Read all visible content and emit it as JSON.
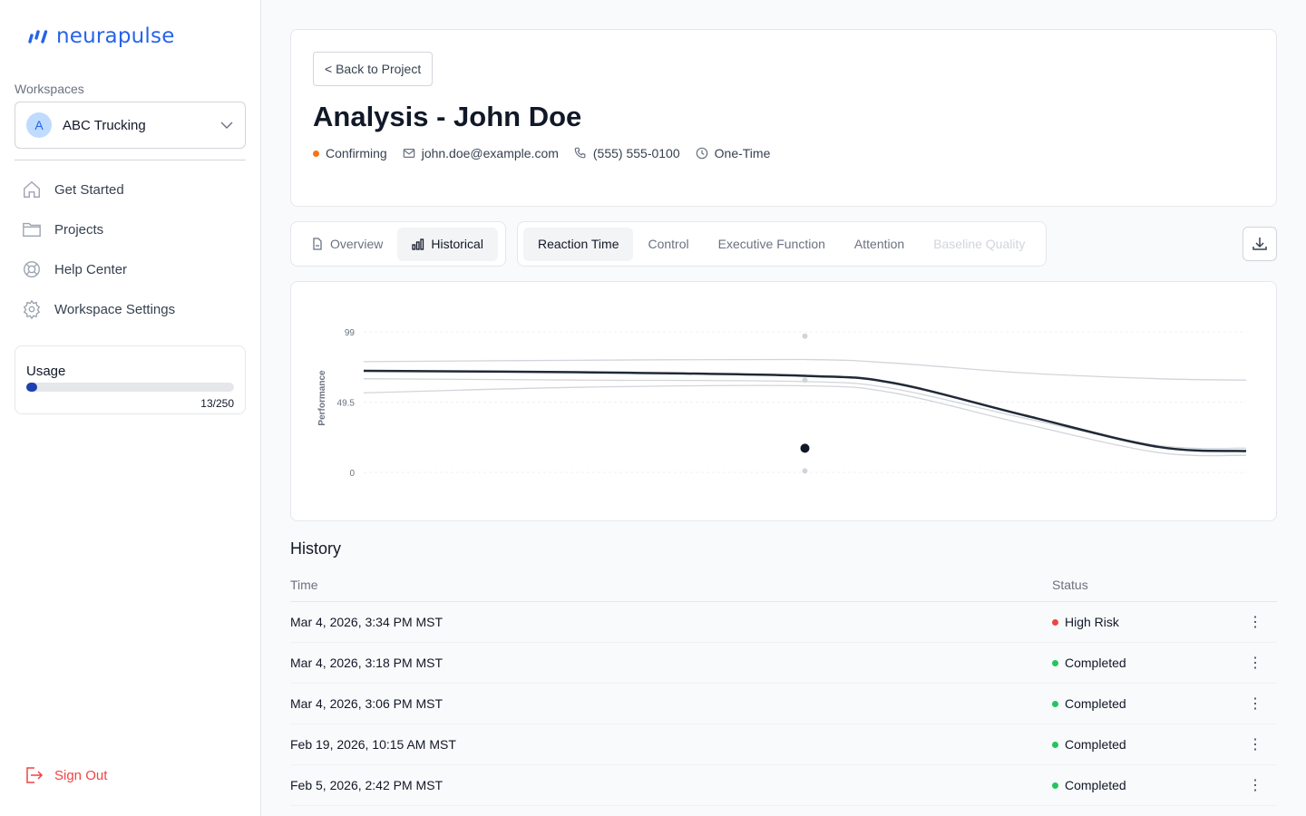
{
  "brand": {
    "name": "neurapulse",
    "color": "#2563eb"
  },
  "sidebar": {
    "workspaces_label": "Workspaces",
    "workspace": {
      "initial": "A",
      "name": "ABC Trucking"
    },
    "items": [
      {
        "label": "Get Started",
        "icon": "home-icon"
      },
      {
        "label": "Projects",
        "icon": "folder-icon"
      },
      {
        "label": "Help Center",
        "icon": "lifebuoy-icon"
      },
      {
        "label": "Workspace Settings",
        "icon": "gear-icon"
      }
    ],
    "usage": {
      "title": "Usage",
      "used": 13,
      "total": 250,
      "count_text": "13/250"
    },
    "sign_out": "Sign Out"
  },
  "header": {
    "back_label": "< Back to Project",
    "title": "Analysis - John Doe",
    "status": {
      "label": "Confirming",
      "color": "#f97316"
    },
    "email": "john.doe@example.com",
    "phone": "(555) 555-0100",
    "frequency": "One-Time"
  },
  "view_tabs": [
    {
      "label": "Overview",
      "active": false
    },
    {
      "label": "Historical",
      "active": true
    }
  ],
  "metric_tabs": [
    {
      "label": "Reaction Time",
      "active": true
    },
    {
      "label": "Control",
      "active": false
    },
    {
      "label": "Executive Function",
      "active": false
    },
    {
      "label": "Attention",
      "active": false
    },
    {
      "label": "Baseline Quality",
      "active": false,
      "disabled": true
    }
  ],
  "chart_data": {
    "type": "line",
    "title": "",
    "xlabel": "",
    "ylabel": "Performance",
    "ylim": [
      0,
      99
    ],
    "yticks": [
      0,
      49.5,
      99
    ],
    "grid": true,
    "x": [
      0,
      0.25,
      0.5,
      0.6,
      0.75,
      0.9,
      1.0
    ],
    "series": [
      {
        "name": "main",
        "color": "#1f2937",
        "values": [
          71.5,
          70.5,
          68,
          63,
          40,
          18,
          15
        ]
      },
      {
        "name": "band-upper",
        "color": "#d1d5db",
        "values": [
          78,
          79,
          79.5,
          77,
          70,
          66,
          65
        ]
      },
      {
        "name": "band-mid",
        "color": "#d1d5db",
        "values": [
          66,
          65,
          64,
          59,
          38,
          19,
          17
        ]
      },
      {
        "name": "band-lower",
        "color": "#d1d5db",
        "values": [
          56,
          60,
          61,
          56,
          34,
          14,
          12
        ]
      }
    ],
    "points": [
      {
        "x": 0.5,
        "y": 96,
        "color": "#d1d5db"
      },
      {
        "x": 0.5,
        "y": 65,
        "color": "#d1d5db"
      },
      {
        "x": 0.5,
        "y": 17,
        "color": "#111827"
      },
      {
        "x": 0.5,
        "y": 1,
        "color": "#d1d5db"
      }
    ]
  },
  "history": {
    "title": "History",
    "columns": [
      "Time",
      "Status"
    ],
    "rows": [
      {
        "time": "Mar 4, 2026, 3:34 PM MST",
        "status": "High Risk",
        "color": "#ef4444"
      },
      {
        "time": "Mar 4, 2026, 3:18 PM MST",
        "status": "Completed",
        "color": "#22c55e"
      },
      {
        "time": "Mar 4, 2026, 3:06 PM MST",
        "status": "Completed",
        "color": "#22c55e"
      },
      {
        "time": "Feb 19, 2026, 10:15 AM MST",
        "status": "Completed",
        "color": "#22c55e"
      },
      {
        "time": "Feb 5, 2026, 2:42 PM MST",
        "status": "Completed",
        "color": "#22c55e"
      }
    ]
  }
}
